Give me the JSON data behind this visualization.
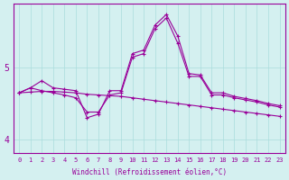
{
  "title": "",
  "xlabel": "Windchill (Refroidissement éolien,°C)",
  "background_color": "#d4f0f0",
  "line_color": "#990099",
  "grid_color": "#aadddd",
  "x_ticks": [
    0,
    1,
    2,
    3,
    4,
    5,
    6,
    7,
    8,
    9,
    10,
    11,
    12,
    13,
    14,
    15,
    16,
    17,
    18,
    19,
    20,
    21,
    22,
    23
  ],
  "ylim": [
    3.8,
    5.9
  ],
  "y_ticks": [
    4,
    5
  ],
  "series1": [
    4.65,
    4.72,
    4.68,
    4.65,
    4.62,
    4.58,
    4.38,
    4.38,
    4.62,
    4.65,
    5.15,
    5.2,
    5.55,
    5.7,
    5.35,
    4.88,
    4.88,
    4.62,
    4.62,
    4.58,
    4.55,
    4.52,
    4.48,
    4.45
  ],
  "series2": [
    4.65,
    4.72,
    4.82,
    4.72,
    4.7,
    4.68,
    4.3,
    4.35,
    4.68,
    4.68,
    5.2,
    5.25,
    5.6,
    5.75,
    5.45,
    4.92,
    4.9,
    4.65,
    4.65,
    4.6,
    4.57,
    4.54,
    4.5,
    4.47
  ],
  "series3": [
    4.65,
    4.66,
    4.67,
    4.67,
    4.66,
    4.65,
    4.63,
    4.62,
    4.61,
    4.6,
    4.58,
    4.56,
    4.54,
    4.52,
    4.5,
    4.48,
    4.46,
    4.44,
    4.42,
    4.4,
    4.38,
    4.36,
    4.34,
    4.32
  ]
}
